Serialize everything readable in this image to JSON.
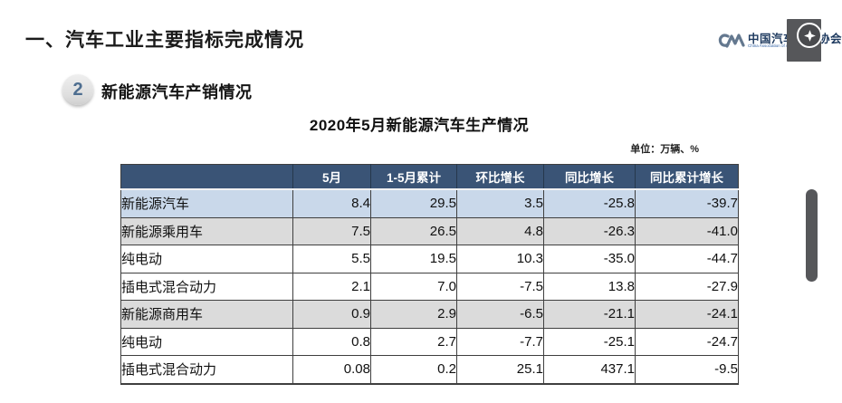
{
  "page": {
    "section_title": "一、汽车工业主要指标完成情况",
    "badge_number": "2",
    "subsection_title": "新能源汽车产销情况",
    "table_title": "2020年5月新能源汽车生产情况",
    "unit_label": "单位：万辆、%"
  },
  "logo": {
    "name_cn": "中国汽车工业协会",
    "name_en": "China Association of Automobile Manufacturers"
  },
  "colors": {
    "header_bg": "#3a5476",
    "row_highlight_blue": "#c9d8ea",
    "row_highlight_gray": "#dbdbdb",
    "overlay_gray": "#56575a",
    "logo_blue": "#64788f"
  },
  "table": {
    "columns": [
      "",
      "5月",
      "1-5月累计",
      "环比增长",
      "同比增长",
      "同比累计增长"
    ],
    "rows": [
      {
        "label": "新能源汽车",
        "indent": 0,
        "highlight": "blue",
        "values": [
          "8.4",
          "29.5",
          "3.5",
          "-25.8",
          "-39.7"
        ]
      },
      {
        "label": "新能源乘用车",
        "indent": 1,
        "highlight": "gray",
        "values": [
          "7.5",
          "26.5",
          "4.8",
          "-26.3",
          "-41.0"
        ]
      },
      {
        "label": "纯电动",
        "indent": 2,
        "highlight": "white",
        "values": [
          "5.5",
          "19.5",
          "10.3",
          "-35.0",
          "-44.7"
        ]
      },
      {
        "label": "插电式混合动力",
        "indent": 2,
        "highlight": "white",
        "values": [
          "2.1",
          "7.0",
          "-7.5",
          "13.8",
          "-27.9"
        ]
      },
      {
        "label": "新能源商用车",
        "indent": 1,
        "highlight": "gray",
        "values": [
          "0.9",
          "2.9",
          "-6.5",
          "-21.1",
          "-24.1"
        ]
      },
      {
        "label": "纯电动",
        "indent": 2,
        "highlight": "white",
        "values": [
          "0.8",
          "2.7",
          "-7.7",
          "-25.1",
          "-24.7"
        ]
      },
      {
        "label": "插电式混合动力",
        "indent": 2,
        "highlight": "white",
        "values": [
          "0.08",
          "0.2",
          "25.1",
          "437.1",
          "-9.5"
        ]
      }
    ]
  },
  "chart_data": {
    "type": "table",
    "title": "2020年5月新能源汽车生产情况",
    "unit": "万辆、%",
    "columns": [
      "5月",
      "1-5月累计",
      "环比增长",
      "同比增长",
      "同比累计增长"
    ],
    "series": [
      {
        "name": "新能源汽车",
        "values": [
          8.4,
          29.5,
          3.5,
          -25.8,
          -39.7
        ]
      },
      {
        "name": "新能源乘用车",
        "values": [
          7.5,
          26.5,
          4.8,
          -26.3,
          -41.0
        ]
      },
      {
        "name": "新能源乘用车-纯电动",
        "values": [
          5.5,
          19.5,
          10.3,
          -35.0,
          -44.7
        ]
      },
      {
        "name": "新能源乘用车-插电式混合动力",
        "values": [
          2.1,
          7.0,
          -7.5,
          13.8,
          -27.9
        ]
      },
      {
        "name": "新能源商用车",
        "values": [
          0.9,
          2.9,
          -6.5,
          -21.1,
          -24.1
        ]
      },
      {
        "name": "新能源商用车-纯电动",
        "values": [
          0.8,
          2.7,
          -7.7,
          -25.1,
          -24.7
        ]
      },
      {
        "name": "新能源商用车-插电式混合动力",
        "values": [
          0.08,
          0.2,
          25.1,
          437.1,
          -9.5
        ]
      }
    ]
  }
}
